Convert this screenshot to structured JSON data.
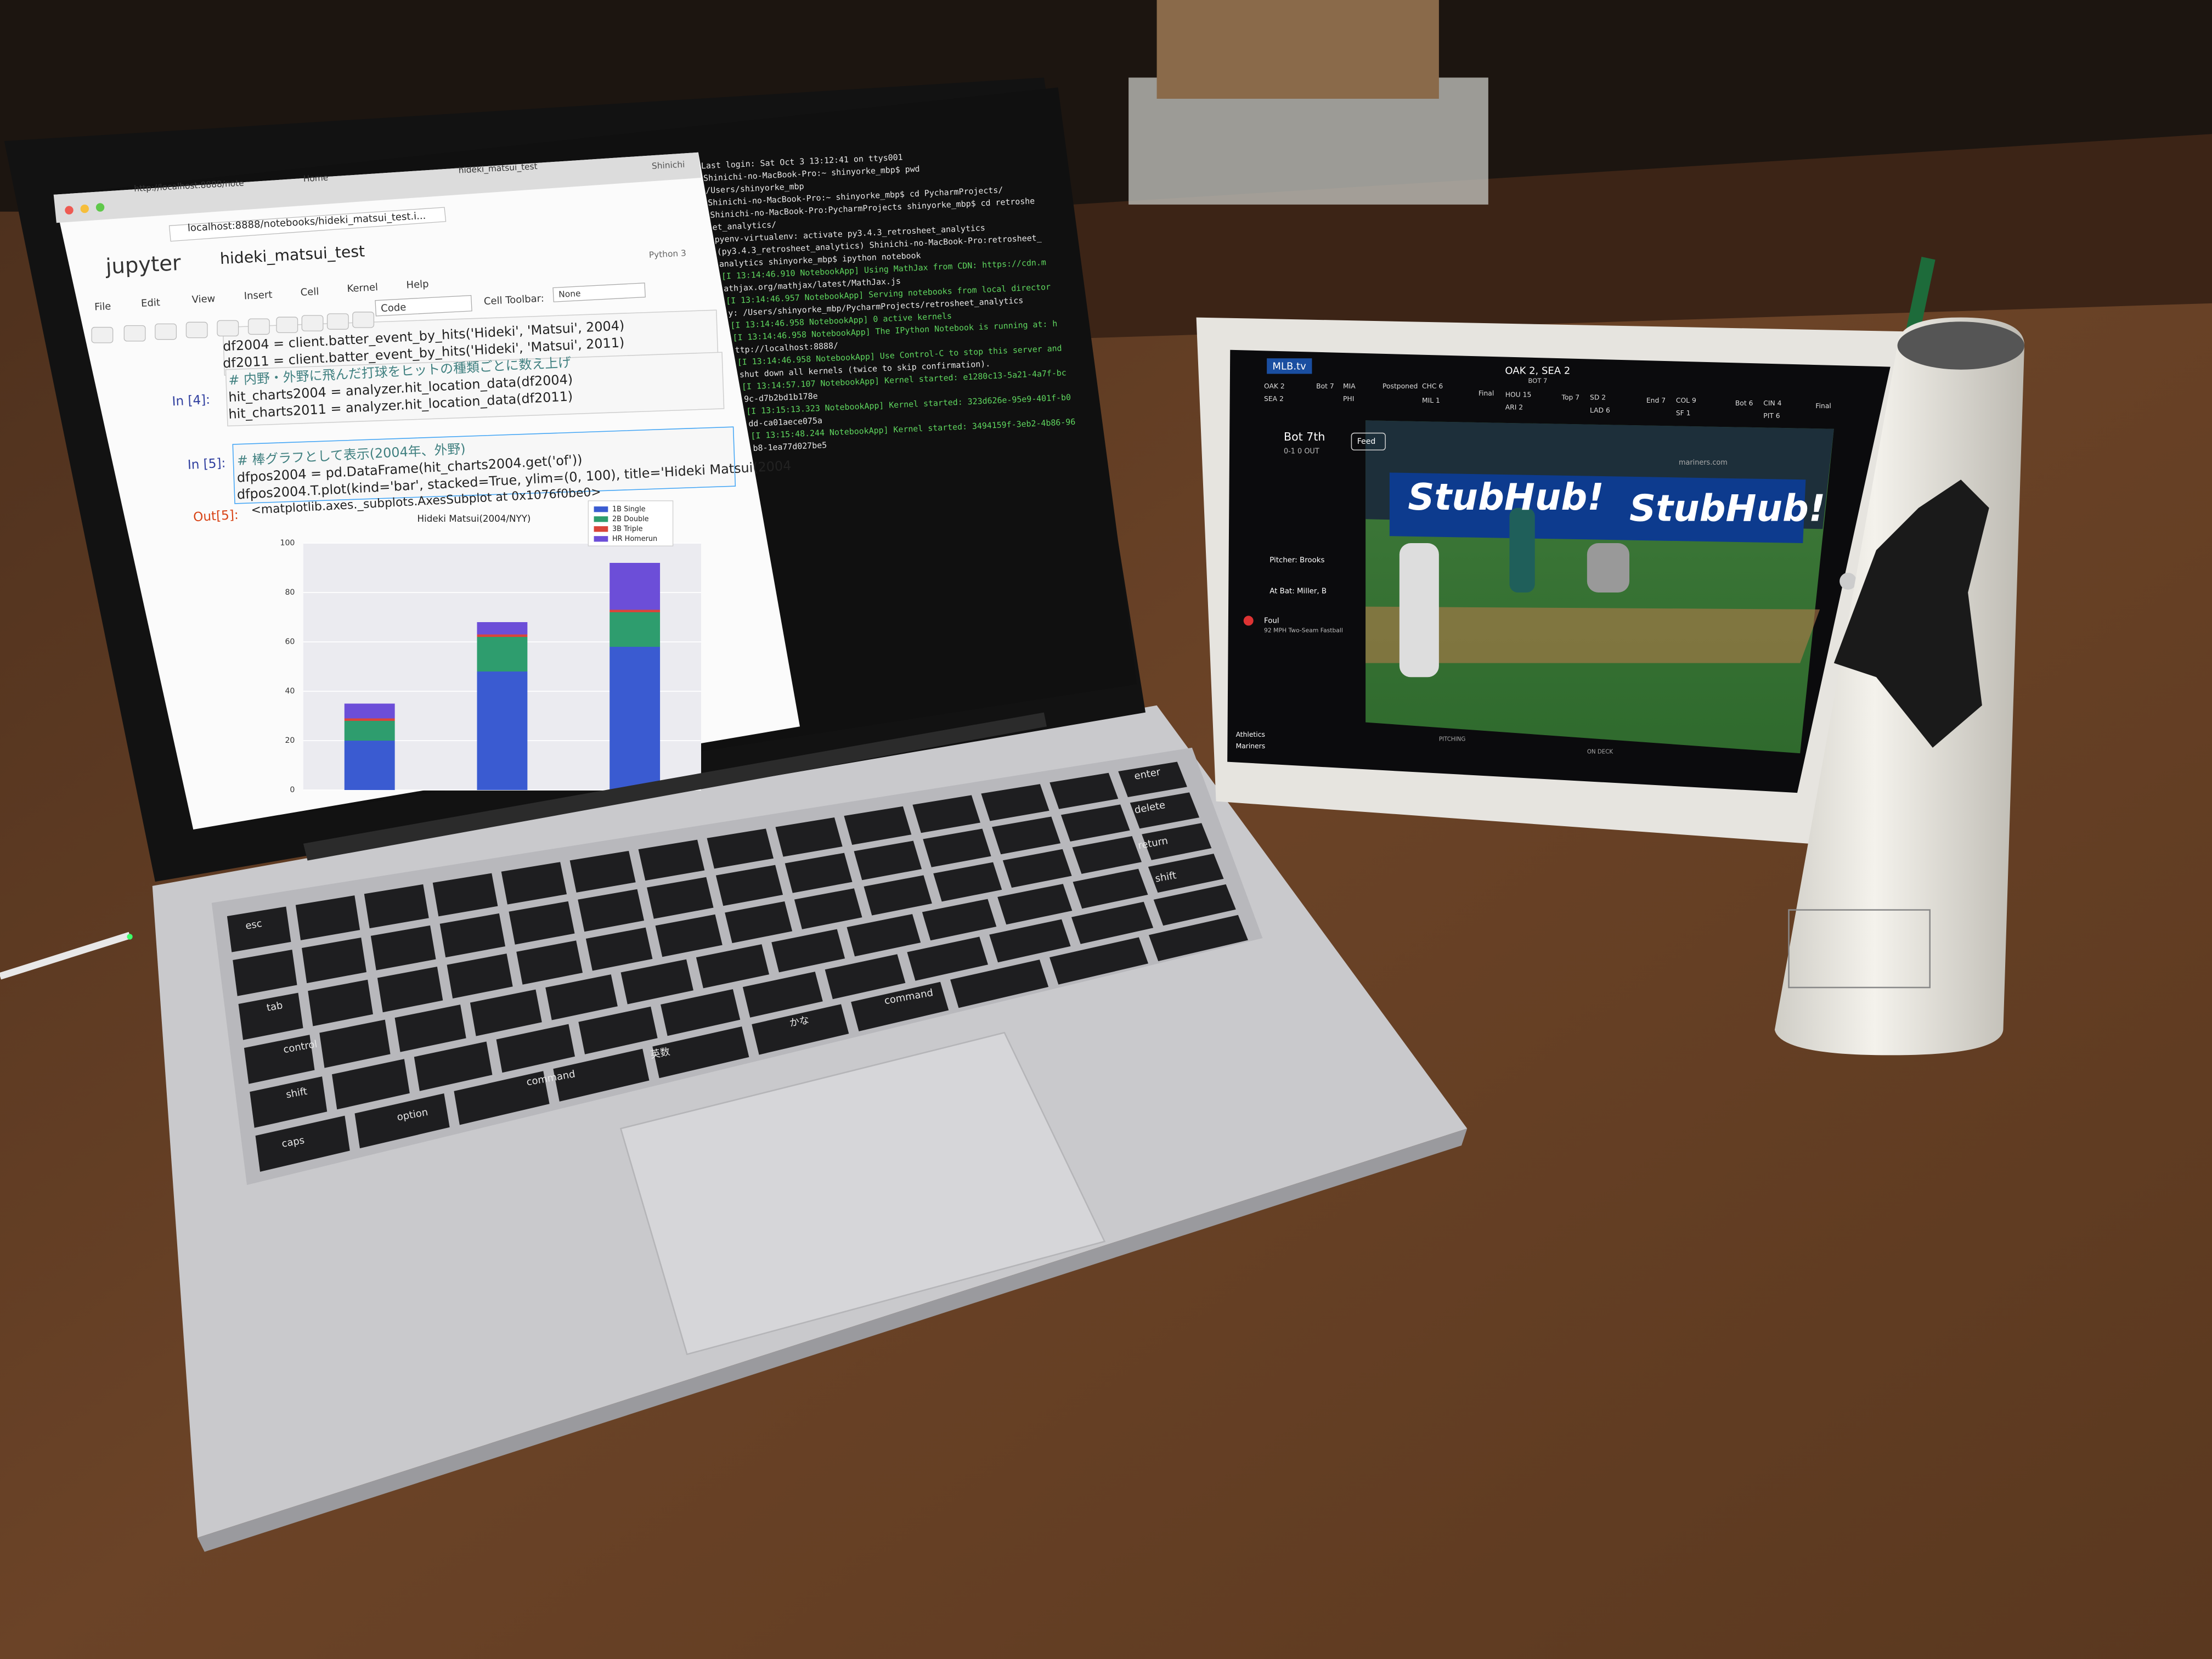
{
  "browser": {
    "tabs": [
      "http://localhost:8888/note",
      "Home",
      "hideki_matsui_test"
    ],
    "user": "Shinichi",
    "url": "localhost:8888/notebooks/hideki_matsui_test.i..."
  },
  "notebook": {
    "logo": "jupyter",
    "name": "hideki_matsui_test",
    "kernel": "Python 3",
    "menu": [
      "File",
      "Edit",
      "View",
      "Insert",
      "Cell",
      "Kernel",
      "Help"
    ],
    "cell_type": "Code",
    "toolbar_label": "Cell Toolbar:",
    "toolbar_value": "None",
    "cells": [
      {
        "lines": [
          "df2004 = client.batter_event_by_hits('Hideki', 'Matsui', 2004)",
          "df2011 = client.batter_event_by_hits('Hideki', 'Matsui', 2011)"
        ]
      },
      {
        "prompt": "In [4]:",
        "lines": [
          "# 内野・外野に飛んだ打球をヒットの種類ごとに数え上げ",
          "hit_charts2004 = analyzer.hit_location_data(df2004)",
          "hit_charts2011 = analyzer.hit_location_data(df2011)"
        ]
      },
      {
        "prompt": "In [5]:",
        "lines": [
          "# 棒グラフとして表示(2004年、外野)",
          "dfpos2004 = pd.DataFrame(hit_charts2004.get('of'))",
          "dfpos2004.T.plot(kind='bar', stacked=True, ylim=(0, 100), title='Hideki Matsui(2004"
        ]
      }
    ],
    "output_prompt": "Out[5]:",
    "output_text": "<matplotlib.axes._subplots.AxesSubplot at 0x1076f0be0>"
  },
  "chart_data": {
    "type": "bar",
    "title": "Hideki Matsui(2004/NYY)",
    "categories": [
      null,
      null,
      null
    ],
    "series": [
      {
        "name": "1B Single",
        "color": "#3a5bd1",
        "values": [
          20,
          48,
          58
        ]
      },
      {
        "name": "2B Double",
        "color": "#2e9d6e",
        "values": [
          8,
          14,
          14
        ]
      },
      {
        "name": "3B Triple",
        "color": "#d9453a",
        "values": [
          1,
          1,
          1
        ]
      },
      {
        "name": "HR Homerun",
        "color": "#6c4ed8",
        "values": [
          6,
          5,
          19
        ]
      }
    ],
    "stacked": true,
    "ylim": [
      0,
      100
    ],
    "yticks": [
      0,
      20,
      40,
      60,
      80,
      100
    ],
    "grid": true,
    "legend": "upper right"
  },
  "terminal": {
    "lines": [
      "Last login: Sat Oct  3 13:12:41 on ttys001",
      "Shinichi-no-MacBook-Pro:~ shinyorke_mbp$ pwd",
      "/Users/shinyorke_mbp",
      "Shinichi-no-MacBook-Pro:~ shinyorke_mbp$ cd PycharmProjects/",
      "Shinichi-no-MacBook-Pro:PycharmProjects shinyorke_mbp$ cd retroshe",
      "et_analytics/",
      "pyenv-virtualenv: activate py3.4.3_retrosheet_analytics",
      "(py3.4.3_retrosheet_analytics) Shinichi-no-MacBook-Pro:retrosheet_",
      "analytics shinyorke_mbp$ ipython notebook",
      "[I 13:14:46.910 NotebookApp] Using MathJax from CDN: https://cdn.m",
      "athjax.org/mathjax/latest/MathJax.js",
      "[I 13:14:46.957 NotebookApp] Serving notebooks from local director",
      "y: /Users/shinyorke_mbp/PycharmProjects/retrosheet_analytics",
      "[I 13:14:46.958 NotebookApp] 0 active kernels",
      "[I 13:14:46.958 NotebookApp] The IPython Notebook is running at: h",
      "ttp://localhost:8888/",
      "[I 13:14:46.958 NotebookApp] Use Control-C to stop this server and",
      " shut down all kernels (twice to skip confirmation).",
      "[I 13:14:57.107 NotebookApp] Kernel started: e1280c13-5a21-4a7f-bc",
      "9c-d7b2bd1b178e",
      "[I 13:15:13.323 NotebookApp] Kernel started: 323d626e-95e9-401f-b0",
      "dd-ca01aece075a",
      "[I 13:15:48.244 NotebookApp] Kernel started: 3494159f-3eb2-4b86-96",
      "b8-1ea77d027be5"
    ]
  },
  "keyboard": {
    "labels": [
      "esc",
      "delete",
      "enter",
      "return",
      "tab",
      "control",
      "shift",
      "shift",
      "caps",
      "option",
      "command",
      "英数",
      "かな",
      "command"
    ]
  },
  "ipad": {
    "logo": "MLB.tv",
    "score": "OAK 2, SEA 2",
    "inning_short": "BOT 7",
    "ticker": [
      "OAK 2",
      "SEA 2",
      "Bot 7",
      "MIA",
      "PHI",
      "Postponed",
      "CHC 6",
      "MIL 1",
      "Final",
      "HOU 15",
      "ARI 2",
      "Top 7",
      "SD 2",
      "LAD 6",
      "End 7",
      "COL 9",
      "SF 1",
      "Bot 6",
      "CIN 4",
      "PIT 6",
      "Final"
    ],
    "inning": "Bot 7th",
    "count": "0-1 0 OUT",
    "feed": "Feed",
    "pitcher": "Pitcher: Brooks",
    "batter": "At Bat: Miller, B",
    "play": "Foul",
    "pitch": "92 MPH Two-Seam Fastball",
    "ads": [
      "StubHub!",
      "StubHub!"
    ],
    "site": "mariners.com",
    "teams": [
      "Athletics",
      "Mariners"
    ],
    "pitching_label": "PITCHING",
    "on_deck_label": "ON DECK"
  }
}
